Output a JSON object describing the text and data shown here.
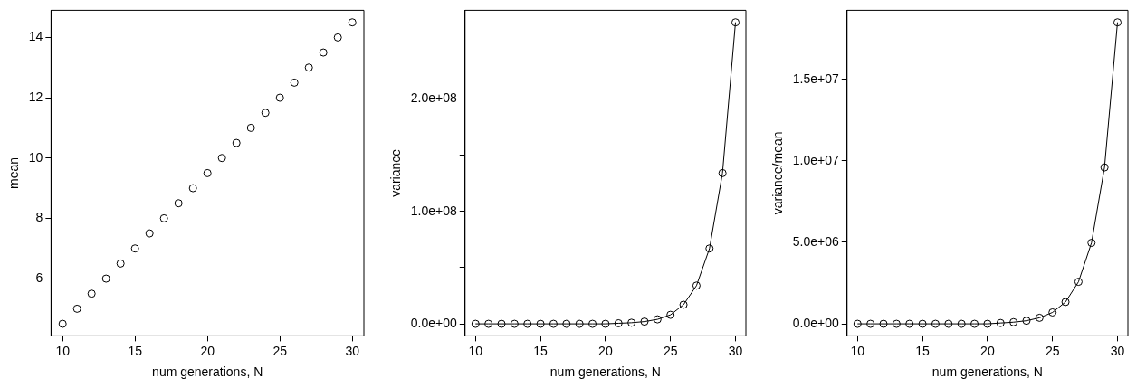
{
  "chart_data": [
    {
      "type": "scatter",
      "xlabel": "num generations, N",
      "ylabel": "mean",
      "x": [
        10,
        11,
        12,
        13,
        14,
        15,
        16,
        17,
        18,
        19,
        20,
        21,
        22,
        23,
        24,
        25,
        26,
        27,
        28,
        29,
        30
      ],
      "series": [
        {
          "color": "#000000",
          "values": [
            4.5,
            5,
            5.5,
            6,
            6.5,
            7,
            7.5,
            8,
            8.5,
            9,
            9.5,
            10,
            10.5,
            11,
            11.5,
            12,
            12.5,
            13,
            13.5,
            14,
            14.5
          ]
        }
      ],
      "xlim": [
        9.2,
        30.8
      ],
      "xticks": [
        10,
        15,
        20,
        25,
        30
      ],
      "ylim": [
        4.1,
        14.9
      ],
      "yticks": [
        6,
        8,
        10,
        12,
        14
      ],
      "grid": false,
      "legend": false,
      "marker": "circle"
    },
    {
      "type": "line",
      "xlabel": "num generations, N",
      "ylabel": "variance",
      "x": [
        10,
        11,
        12,
        13,
        14,
        15,
        16,
        17,
        18,
        19,
        20,
        21,
        22,
        23,
        24,
        25,
        26,
        27,
        28,
        29,
        30
      ],
      "series": [
        {
          "color": "#000000",
          "values": [
            0,
            0,
            0,
            0,
            0,
            0,
            0,
            0,
            0,
            0,
            0,
            500000,
            1000000,
            2000000,
            4000000,
            8000000,
            17000000,
            34000000,
            67000000,
            134000000,
            268000000
          ]
        }
      ],
      "xlim": [
        9.2,
        30.8
      ],
      "xticks": [
        10,
        15,
        20,
        25,
        30
      ],
      "ylim": [
        -10700000,
        278700000
      ],
      "yticks": [
        {
          "value": 0,
          "label": "0.0e+00"
        },
        {
          "value": 50000000,
          "label": null
        },
        {
          "value": 100000000,
          "label": "1.0e+08"
        },
        {
          "value": 150000000,
          "label": null
        },
        {
          "value": 200000000,
          "label": "2.0e+08"
        },
        {
          "value": 250000000,
          "label": null
        }
      ],
      "grid": false,
      "legend": false,
      "marker": "circle",
      "line_style": "solid"
    },
    {
      "type": "line",
      "xlabel": "num generations, N",
      "ylabel": "variance/mean",
      "x": [
        10,
        11,
        12,
        13,
        14,
        15,
        16,
        17,
        18,
        19,
        20,
        21,
        22,
        23,
        24,
        25,
        26,
        27,
        28,
        29,
        30
      ],
      "series": [
        {
          "color": "#000000",
          "values": [
            0,
            0,
            0,
            0,
            0,
            0,
            0,
            0,
            0,
            0,
            0,
            50000,
            100000,
            190000,
            370000,
            700000,
            1340000,
            2580000,
            4970000,
            9600000,
            18500000
          ]
        }
      ],
      "xlim": [
        9.2,
        30.8
      ],
      "xticks": [
        10,
        15,
        20,
        25,
        30
      ],
      "ylim": [
        -740000,
        19240000
      ],
      "yticks": [
        {
          "value": 0,
          "label": "0.0e+00"
        },
        {
          "value": 5000000,
          "label": "5.0e+06"
        },
        {
          "value": 10000000,
          "label": "1.0e+07"
        },
        {
          "value": 15000000,
          "label": "1.5e+07"
        }
      ],
      "grid": false,
      "legend": false,
      "marker": "circle",
      "line_style": "solid"
    }
  ]
}
